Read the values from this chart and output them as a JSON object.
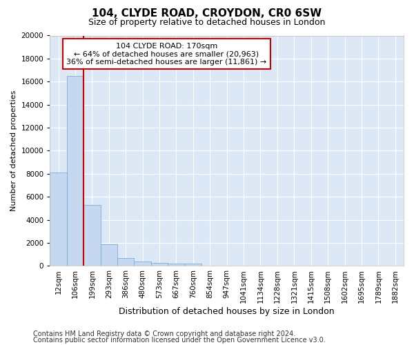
{
  "title": "104, CLYDE ROAD, CROYDON, CR0 6SW",
  "subtitle": "Size of property relative to detached houses in London",
  "xlabel": "Distribution of detached houses by size in London",
  "ylabel": "Number of detached properties",
  "categories": [
    "12sqm",
    "106sqm",
    "199sqm",
    "293sqm",
    "386sqm",
    "480sqm",
    "573sqm",
    "667sqm",
    "760sqm",
    "854sqm",
    "947sqm",
    "1041sqm",
    "1134sqm",
    "1228sqm",
    "1321sqm",
    "1415sqm",
    "1508sqm",
    "1602sqm",
    "1695sqm",
    "1789sqm",
    "1882sqm"
  ],
  "bar_values": [
    8100,
    16500,
    5300,
    1850,
    700,
    350,
    260,
    210,
    170,
    0,
    0,
    0,
    0,
    0,
    0,
    0,
    0,
    0,
    0,
    0,
    0
  ],
  "bar_color": "#c5d8f0",
  "bar_edge_color": "#7aadd4",
  "red_line_x": 1.5,
  "property_label": "104 CLYDE ROAD: 170sqm",
  "annotation_line1": "← 64% of detached houses are smaller (20,963)",
  "annotation_line2": "36% of semi-detached houses are larger (11,861) →",
  "red_line_color": "#cc0000",
  "annotation_box_color": "#ffffff",
  "annotation_box_edge": "#cc0000",
  "ylim_max": 20000,
  "yticks": [
    0,
    2000,
    4000,
    6000,
    8000,
    10000,
    12000,
    14000,
    16000,
    18000,
    20000
  ],
  "footer_line1": "Contains HM Land Registry data © Crown copyright and database right 2024.",
  "footer_line2": "Contains public sector information licensed under the Open Government Licence v3.0.",
  "fig_bg": "#ffffff",
  "plot_bg": "#dce8f5",
  "grid_color": "#ffffff",
  "title_fontsize": 11,
  "subtitle_fontsize": 9,
  "xlabel_fontsize": 9,
  "ylabel_fontsize": 8,
  "tick_fontsize": 7.5,
  "annotation_fontsize": 8,
  "footer_fontsize": 7
}
